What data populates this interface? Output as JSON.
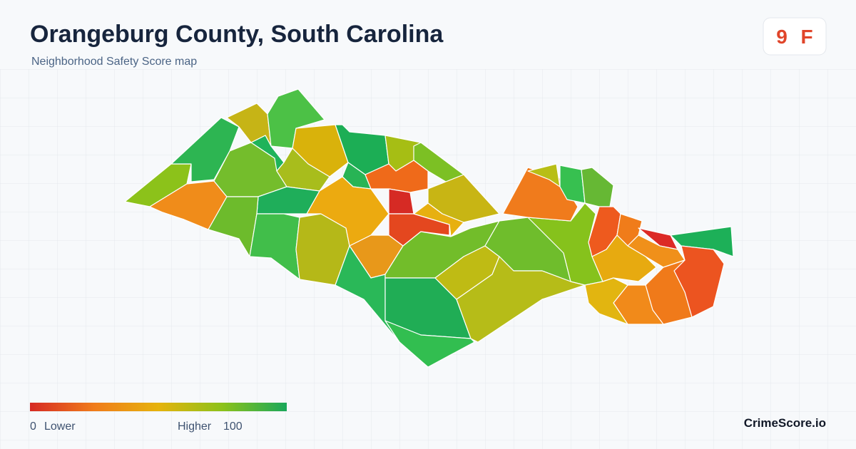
{
  "header": {
    "title": "Orangeburg County, South Carolina",
    "subtitle": "Neighborhood Safety Score map"
  },
  "badge": {
    "score": 9,
    "grade": "F"
  },
  "legend": {
    "min": 0,
    "min_label": "Lower",
    "max_label": "Higher",
    "max": 100
  },
  "footer": {
    "brand": "CrimeScore.io"
  }
}
